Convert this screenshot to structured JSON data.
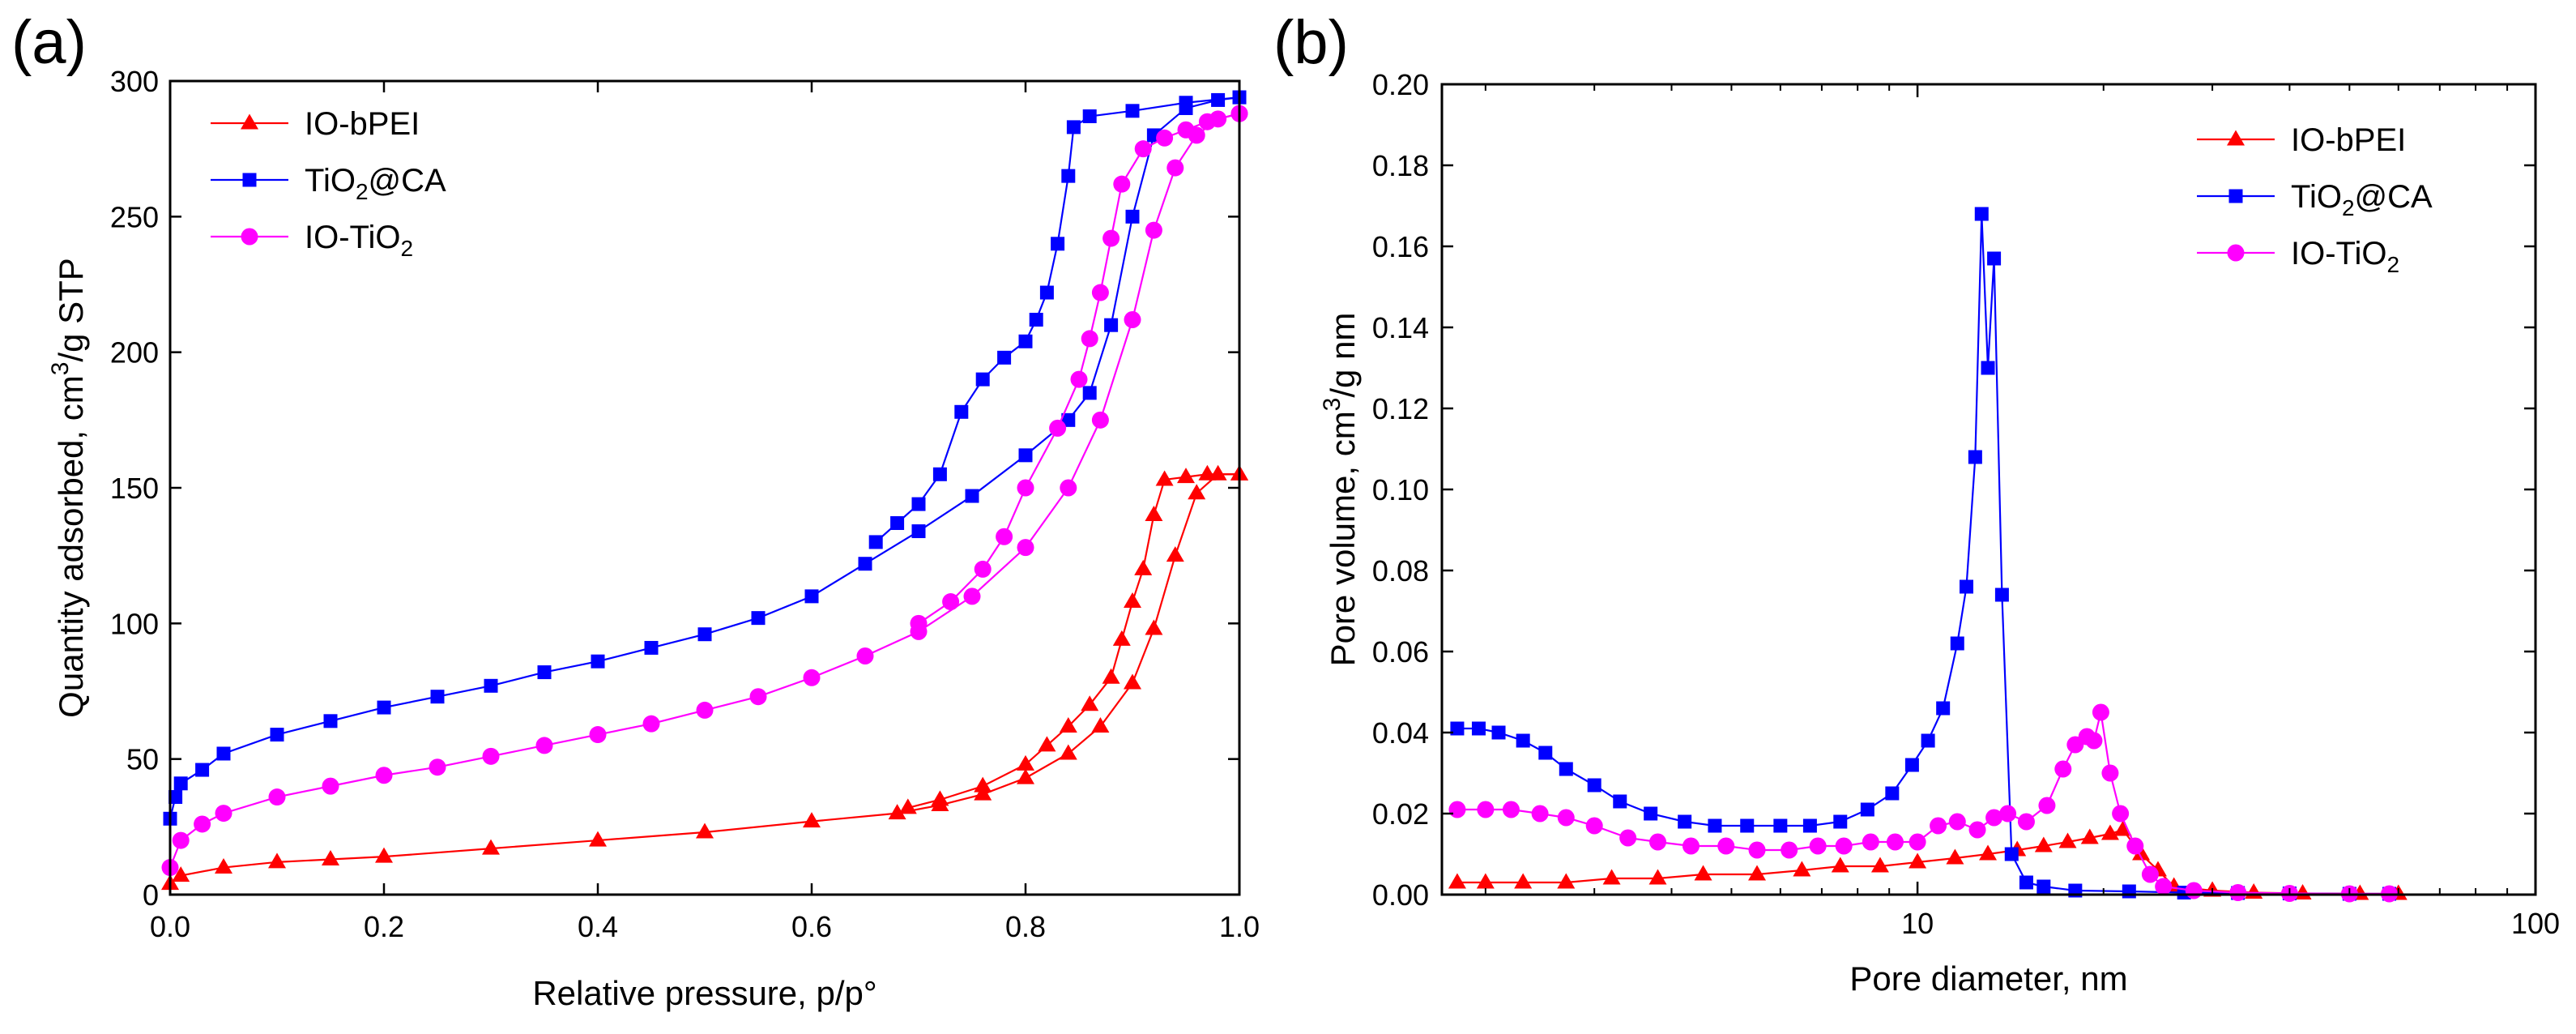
{
  "chart_data": [
    {
      "panel": "(a)",
      "type": "scatter",
      "connected": true,
      "xlabel": "Relative pressure, p/p°",
      "ylabel": {
        "pre": "Quantity adsorbed, cm",
        "sup": "3",
        "post": "/g STP"
      },
      "xscale": "linear",
      "xlim": [
        0.0,
        1.0
      ],
      "ylim": [
        0,
        300
      ],
      "xticks": [
        0.0,
        0.2,
        0.4,
        0.6,
        0.8,
        1.0
      ],
      "xtick_labels": [
        "0.0",
        "0.2",
        "0.4",
        "0.6",
        "0.8",
        "1.0"
      ],
      "yticks": [
        0,
        50,
        100,
        150,
        200,
        250,
        300
      ],
      "ytick_labels": [
        "0",
        "50",
        "100",
        "150",
        "200",
        "250",
        "300"
      ],
      "legend_position": "top-left",
      "series": [
        {
          "name": "IO-bPEI",
          "label": {
            "pre": "IO-bPEI",
            "sub": "",
            "post": ""
          },
          "color": "#ff0000",
          "marker": "triangle",
          "adsorption": [
            [
              0.0,
              4
            ],
            [
              0.01,
              7
            ],
            [
              0.05,
              10
            ],
            [
              0.1,
              12
            ],
            [
              0.15,
              13
            ],
            [
              0.2,
              14
            ],
            [
              0.3,
              17
            ],
            [
              0.4,
              20
            ],
            [
              0.5,
              23
            ],
            [
              0.6,
              27
            ],
            [
              0.68,
              30
            ],
            [
              0.72,
              33
            ],
            [
              0.76,
              37
            ],
            [
              0.8,
              43
            ],
            [
              0.84,
              52
            ],
            [
              0.87,
              62
            ],
            [
              0.9,
              78
            ],
            [
              0.92,
              98
            ],
            [
              0.94,
              125
            ],
            [
              0.96,
              148
            ],
            [
              0.98,
              155
            ],
            [
              1.0,
              155
            ]
          ],
          "desorption": [
            [
              1.0,
              155
            ],
            [
              0.97,
              155
            ],
            [
              0.95,
              154
            ],
            [
              0.93,
              153
            ],
            [
              0.92,
              140
            ],
            [
              0.91,
              120
            ],
            [
              0.9,
              108
            ],
            [
              0.89,
              94
            ],
            [
              0.88,
              80
            ],
            [
              0.86,
              70
            ],
            [
              0.84,
              62
            ],
            [
              0.82,
              55
            ],
            [
              0.8,
              48
            ],
            [
              0.76,
              40
            ],
            [
              0.72,
              35
            ],
            [
              0.69,
              32
            ]
          ]
        },
        {
          "name": "TiO2@CA",
          "label": {
            "pre": "TiO",
            "sub": "2",
            "post": "@CA"
          },
          "color": "#0000ff",
          "marker": "square",
          "adsorption": [
            [
              0.0,
              28
            ],
            [
              0.005,
              36
            ],
            [
              0.01,
              41
            ],
            [
              0.03,
              46
            ],
            [
              0.05,
              52
            ],
            [
              0.1,
              59
            ],
            [
              0.15,
              64
            ],
            [
              0.2,
              69
            ],
            [
              0.25,
              73
            ],
            [
              0.3,
              77
            ],
            [
              0.35,
              82
            ],
            [
              0.4,
              86
            ],
            [
              0.45,
              91
            ],
            [
              0.5,
              96
            ],
            [
              0.55,
              102
            ],
            [
              0.6,
              110
            ],
            [
              0.65,
              122
            ],
            [
              0.7,
              134
            ],
            [
              0.75,
              147
            ],
            [
              0.8,
              162
            ],
            [
              0.84,
              175
            ],
            [
              0.86,
              185
            ],
            [
              0.88,
              210
            ],
            [
              0.9,
              250
            ],
            [
              0.92,
              280
            ],
            [
              0.95,
              290
            ],
            [
              0.98,
              293
            ],
            [
              1.0,
              294
            ]
          ],
          "desorption": [
            [
              1.0,
              294
            ],
            [
              0.95,
              292
            ],
            [
              0.9,
              289
            ],
            [
              0.86,
              287
            ],
            [
              0.845,
              283
            ],
            [
              0.84,
              265
            ],
            [
              0.83,
              240
            ],
            [
              0.82,
              222
            ],
            [
              0.81,
              212
            ],
            [
              0.8,
              204
            ],
            [
              0.78,
              198
            ],
            [
              0.76,
              190
            ],
            [
              0.74,
              178
            ],
            [
              0.72,
              155
            ],
            [
              0.7,
              144
            ],
            [
              0.68,
              137
            ],
            [
              0.66,
              130
            ]
          ]
        },
        {
          "name": "IO-TiO2",
          "label": {
            "pre": "IO-TiO",
            "sub": "2",
            "post": ""
          },
          "color": "#ff00ff",
          "marker": "circle",
          "adsorption": [
            [
              0.0,
              10
            ],
            [
              0.01,
              20
            ],
            [
              0.03,
              26
            ],
            [
              0.05,
              30
            ],
            [
              0.1,
              36
            ],
            [
              0.15,
              40
            ],
            [
              0.2,
              44
            ],
            [
              0.25,
              47
            ],
            [
              0.3,
              51
            ],
            [
              0.35,
              55
            ],
            [
              0.4,
              59
            ],
            [
              0.45,
              63
            ],
            [
              0.5,
              68
            ],
            [
              0.55,
              73
            ],
            [
              0.6,
              80
            ],
            [
              0.65,
              88
            ],
            [
              0.7,
              97
            ],
            [
              0.75,
              110
            ],
            [
              0.8,
              128
            ],
            [
              0.84,
              150
            ],
            [
              0.87,
              175
            ],
            [
              0.9,
              212
            ],
            [
              0.92,
              245
            ],
            [
              0.94,
              268
            ],
            [
              0.96,
              280
            ],
            [
              0.98,
              286
            ],
            [
              1.0,
              288
            ]
          ],
          "desorption": [
            [
              1.0,
              288
            ],
            [
              0.97,
              285
            ],
            [
              0.95,
              282
            ],
            [
              0.93,
              279
            ],
            [
              0.91,
              275
            ],
            [
              0.89,
              262
            ],
            [
              0.88,
              242
            ],
            [
              0.87,
              222
            ],
            [
              0.86,
              205
            ],
            [
              0.85,
              190
            ],
            [
              0.83,
              172
            ],
            [
              0.8,
              150
            ],
            [
              0.78,
              132
            ],
            [
              0.76,
              120
            ],
            [
              0.73,
              108
            ],
            [
              0.7,
              100
            ]
          ]
        }
      ]
    },
    {
      "panel": "(b)",
      "type": "scatter",
      "connected": true,
      "xlabel": "Pore diameter, nm",
      "ylabel": {
        "pre": "Pore volume, cm",
        "sup": "3",
        "post": "/g nm"
      },
      "xscale": "log",
      "xlim": [
        1.7,
        100
      ],
      "ylim": [
        0.0,
        0.2
      ],
      "xticks": [
        10,
        100
      ],
      "xtick_labels": [
        "10",
        "100"
      ],
      "yticks": [
        0.0,
        0.02,
        0.04,
        0.06,
        0.08,
        0.1,
        0.12,
        0.14,
        0.16,
        0.18,
        0.2
      ],
      "ytick_labels": [
        "0.00",
        "0.02",
        "0.04",
        "0.06",
        "0.08",
        "0.10",
        "0.12",
        "0.14",
        "0.16",
        "0.18",
        "0.20"
      ],
      "legend_position": "top-right",
      "series": [
        {
          "name": "IO-bPEI",
          "label": {
            "pre": "IO-bPEI",
            "sub": "",
            "post": ""
          },
          "color": "#ff0000",
          "marker": "triangle",
          "points": [
            [
              1.8,
              0.003
            ],
            [
              2,
              0.003
            ],
            [
              2.3,
              0.003
            ],
            [
              2.7,
              0.003
            ],
            [
              3.2,
              0.004
            ],
            [
              3.8,
              0.004
            ],
            [
              4.5,
              0.005
            ],
            [
              5.5,
              0.005
            ],
            [
              6.5,
              0.006
            ],
            [
              7.5,
              0.007
            ],
            [
              8.7,
              0.007
            ],
            [
              10,
              0.008
            ],
            [
              11.5,
              0.009
            ],
            [
              13,
              0.01
            ],
            [
              14.5,
              0.011
            ],
            [
              16,
              0.012
            ],
            [
              17.5,
              0.013
            ],
            [
              19,
              0.014
            ],
            [
              20.5,
              0.015
            ],
            [
              21.5,
              0.016
            ],
            [
              23,
              0.01
            ],
            [
              24.5,
              0.006
            ],
            [
              26,
              0.002
            ],
            [
              30,
              0.001
            ],
            [
              35,
              0.0005
            ],
            [
              42,
              0.0003
            ],
            [
              52,
              0.0002
            ],
            [
              60,
              0.0002
            ]
          ]
        },
        {
          "name": "TiO2@CA",
          "label": {
            "pre": "TiO",
            "sub": "2",
            "post": "@CA"
          },
          "color": "#0000ff",
          "marker": "square",
          "points": [
            [
              1.8,
              0.041
            ],
            [
              1.95,
              0.041
            ],
            [
              2.1,
              0.04
            ],
            [
              2.3,
              0.038
            ],
            [
              2.5,
              0.035
            ],
            [
              2.7,
              0.031
            ],
            [
              3.0,
              0.027
            ],
            [
              3.3,
              0.023
            ],
            [
              3.7,
              0.02
            ],
            [
              4.2,
              0.018
            ],
            [
              4.7,
              0.017
            ],
            [
              5.3,
              0.017
            ],
            [
              6.0,
              0.017
            ],
            [
              6.7,
              0.017
            ],
            [
              7.5,
              0.018
            ],
            [
              8.3,
              0.021
            ],
            [
              9.1,
              0.025
            ],
            [
              9.8,
              0.032
            ],
            [
              10.4,
              0.038
            ],
            [
              11.0,
              0.046
            ],
            [
              11.6,
              0.062
            ],
            [
              12.0,
              0.076
            ],
            [
              12.4,
              0.108
            ],
            [
              12.7,
              0.168
            ],
            [
              13.0,
              0.13
            ],
            [
              13.3,
              0.157
            ],
            [
              13.7,
              0.074
            ],
            [
              14.2,
              0.01
            ],
            [
              15,
              0.003
            ],
            [
              16,
              0.002
            ],
            [
              18,
              0.001
            ],
            [
              22,
              0.0008
            ],
            [
              27,
              0.0005
            ],
            [
              33,
              0.0004
            ],
            [
              40,
              0.0003
            ],
            [
              50,
              0.0002
            ],
            [
              58,
              0.0002
            ]
          ]
        },
        {
          "name": "IO-TiO2",
          "label": {
            "pre": "IO-TiO",
            "sub": "2",
            "post": ""
          },
          "color": "#ff00ff",
          "marker": "circle",
          "points": [
            [
              1.8,
              0.021
            ],
            [
              2.0,
              0.021
            ],
            [
              2.2,
              0.021
            ],
            [
              2.45,
              0.02
            ],
            [
              2.7,
              0.019
            ],
            [
              3.0,
              0.017
            ],
            [
              3.4,
              0.014
            ],
            [
              3.8,
              0.013
            ],
            [
              4.3,
              0.012
            ],
            [
              4.9,
              0.012
            ],
            [
              5.5,
              0.011
            ],
            [
              6.2,
              0.011
            ],
            [
              6.9,
              0.012
            ],
            [
              7.6,
              0.012
            ],
            [
              8.4,
              0.013
            ],
            [
              9.2,
              0.013
            ],
            [
              10.0,
              0.013
            ],
            [
              10.8,
              0.017
            ],
            [
              11.6,
              0.018
            ],
            [
              12.5,
              0.016
            ],
            [
              13.3,
              0.019
            ],
            [
              14.0,
              0.02
            ],
            [
              15.0,
              0.018
            ],
            [
              16.2,
              0.022
            ],
            [
              17.2,
              0.031
            ],
            [
              18.0,
              0.037
            ],
            [
              18.8,
              0.039
            ],
            [
              19.3,
              0.038
            ],
            [
              19.8,
              0.045
            ],
            [
              20.5,
              0.03
            ],
            [
              21.3,
              0.02
            ],
            [
              22.5,
              0.012
            ],
            [
              23.8,
              0.005
            ],
            [
              25,
              0.002
            ],
            [
              28,
              0.001
            ],
            [
              33,
              0.0005
            ],
            [
              40,
              0.0003
            ],
            [
              50,
              0.0002
            ],
            [
              58,
              0.0002
            ]
          ]
        }
      ]
    }
  ]
}
